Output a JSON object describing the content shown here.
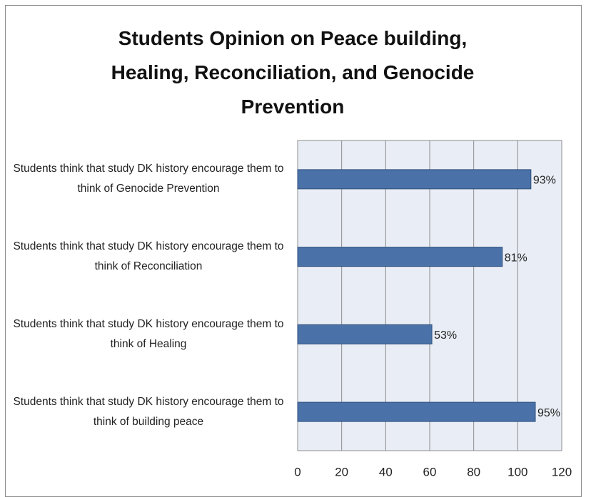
{
  "chart_data": {
    "type": "bar",
    "orientation": "horizontal",
    "title": "Students Opinion on Peace building, Healing, Reconciliation, and Genocide Prevention",
    "categories": [
      "Students think that study DK history encourage them to think of Genocide Prevention",
      "Students think that study DK history encourage them to think of Reconciliation",
      "Students think that study DK history encourage them to think of Healing",
      "Students think that study DK history encourage them to think of building peace"
    ],
    "values": [
      106,
      93,
      61,
      108
    ],
    "value_labels": [
      "93%",
      "81%",
      "53%",
      "95%"
    ],
    "color": "#4a72a8",
    "xlim": [
      0,
      120
    ],
    "xticks": [
      0,
      20,
      40,
      60,
      80,
      100,
      120
    ],
    "grid": true
  }
}
